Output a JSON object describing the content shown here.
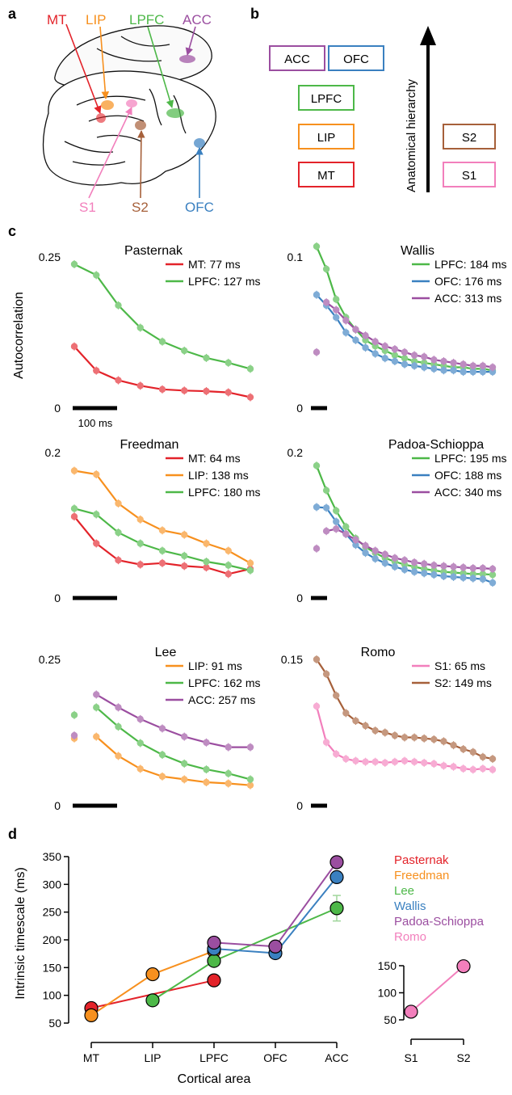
{
  "colors": {
    "MT": "#e3232a",
    "LIP": "#f7901e",
    "LPFC": "#4db848",
    "OFC": "#3a80c0",
    "ACC": "#9b4ea0",
    "S1": "#f27fbc",
    "S2": "#a6603a"
  },
  "panel_a": {
    "letter": "a",
    "labels": {
      "MT": "MT",
      "LIP": "LIP",
      "LPFC": "LPFC",
      "ACC": "ACC",
      "S1": "S1",
      "S2": "S2",
      "OFC": "OFC"
    }
  },
  "panel_b": {
    "letter": "b",
    "axis_label": "Anatomical hierarchy",
    "boxes": {
      "ACC": "ACC",
      "OFC": "OFC",
      "LPFC": "LPFC",
      "LIP": "LIP",
      "MT": "MT",
      "S2": "S2",
      "S1": "S1"
    }
  },
  "panel_c": {
    "letter": "c",
    "ylabel": "Autocorrelation",
    "scalebar_label": "100 ms"
  },
  "panel_d": {
    "letter": "d",
    "ylabel": "Intrinsic timescale (ms)",
    "xlabel": "Cortical area",
    "legend": [
      "Pasternak",
      "Freedman",
      "Lee",
      "Wallis",
      "Padoa-Schioppa",
      "Romo"
    ]
  },
  "chart_data": [
    {
      "id": "pasternak",
      "type": "line",
      "title": "Pasternak",
      "ylim": [
        0,
        0.25
      ],
      "yticks": [
        "0.25",
        "0"
      ],
      "legend": [
        "MT: 77 ms",
        "LPFC: 127 ms"
      ],
      "series": [
        {
          "name": "MT: 77 ms",
          "area": "MT",
          "x": [
            1,
            2,
            3,
            4,
            5,
            6,
            7,
            8,
            9
          ],
          "values": [
            0.102,
            0.062,
            0.046,
            0.037,
            0.031,
            0.029,
            0.028,
            0.026,
            0.018
          ]
        },
        {
          "name": "LPFC: 127 ms",
          "area": "LPFC",
          "x": [
            1,
            2,
            3,
            4,
            5,
            6,
            7,
            8,
            9
          ],
          "values": [
            0.238,
            0.22,
            0.17,
            0.133,
            0.11,
            0.095,
            0.083,
            0.075,
            0.065
          ]
        }
      ]
    },
    {
      "id": "wallis",
      "type": "line",
      "title": "Wallis",
      "ylim": [
        0,
        0.1
      ],
      "yticks": [
        "0.1",
        "0"
      ],
      "legend": [
        "LPFC: 184 ms",
        "OFC: 176 ms",
        "ACC: 313 ms"
      ],
      "series": [
        {
          "name": "LPFC: 184 ms",
          "area": "LPFC",
          "x": [
            1,
            2,
            3,
            4,
            5,
            6,
            7,
            8,
            9,
            10,
            11,
            12,
            13,
            14,
            15,
            16,
            17,
            18,
            19
          ],
          "values": [
            0.107,
            0.092,
            0.072,
            0.06,
            0.052,
            0.045,
            0.041,
            0.038,
            0.035,
            0.033,
            0.031,
            0.03,
            0.029,
            0.028,
            0.027,
            0.027,
            0.026,
            0.026,
            0.025
          ]
        },
        {
          "name": "OFC: 176 ms",
          "area": "OFC",
          "x": [
            1,
            2,
            3,
            4,
            5,
            6,
            7,
            8,
            9,
            10,
            11,
            12,
            13,
            14,
            15,
            16,
            17,
            18,
            19
          ],
          "values": [
            0.075,
            0.068,
            0.06,
            0.05,
            0.045,
            0.04,
            0.036,
            0.033,
            0.031,
            0.029,
            0.028,
            0.027,
            0.026,
            0.025,
            0.025,
            0.024,
            0.024,
            0.024,
            0.024
          ]
        },
        {
          "name": "ACC: 313 ms",
          "area": "ACC",
          "x": [
            1,
            2,
            3,
            4,
            5,
            6,
            7,
            8,
            9,
            10,
            11,
            12,
            13,
            14,
            15,
            16,
            17,
            18,
            19
          ],
          "values": [
            0.037,
            0.07,
            0.065,
            0.058,
            0.052,
            0.048,
            0.044,
            0.041,
            0.039,
            0.037,
            0.035,
            0.034,
            0.032,
            0.031,
            0.03,
            0.029,
            0.028,
            0.028,
            0.027
          ]
        }
      ]
    },
    {
      "id": "freedman",
      "type": "line",
      "title": "Freedman",
      "ylim": [
        0,
        0.2
      ],
      "yticks": [
        "0.2",
        "0"
      ],
      "legend": [
        "MT: 64 ms",
        "LIP: 138 ms",
        "LPFC: 180 ms"
      ],
      "series": [
        {
          "name": "MT: 64 ms",
          "area": "MT",
          "x": [
            1,
            2,
            3,
            4,
            5,
            6,
            7,
            8,
            9
          ],
          "values": [
            0.112,
            0.075,
            0.052,
            0.046,
            0.048,
            0.044,
            0.042,
            0.033,
            0.04
          ]
        },
        {
          "name": "LIP: 138 ms",
          "area": "LIP",
          "x": [
            1,
            2,
            3,
            4,
            5,
            6,
            7,
            8,
            9
          ],
          "values": [
            0.175,
            0.17,
            0.13,
            0.108,
            0.093,
            0.087,
            0.075,
            0.065,
            0.048
          ]
        },
        {
          "name": "LPFC: 180 ms",
          "area": "LPFC",
          "x": [
            1,
            2,
            3,
            4,
            5,
            6,
            7,
            8,
            9
          ],
          "values": [
            0.123,
            0.115,
            0.09,
            0.075,
            0.065,
            0.058,
            0.05,
            0.045,
            0.038
          ]
        }
      ]
    },
    {
      "id": "padoa",
      "type": "line",
      "title": "Padoa-Schioppa",
      "ylim": [
        0,
        0.2
      ],
      "yticks": [
        "0.2",
        "0"
      ],
      "legend": [
        "LPFC: 195 ms",
        "OFC: 188 ms",
        "ACC: 340 ms"
      ],
      "series": [
        {
          "name": "LPFC: 195 ms",
          "area": "LPFC",
          "x": [
            1,
            2,
            3,
            4,
            5,
            6,
            7,
            8,
            9,
            10,
            11,
            12,
            13,
            14,
            15,
            16,
            17,
            18,
            19
          ],
          "values": [
            0.182,
            0.148,
            0.12,
            0.098,
            0.082,
            0.07,
            0.062,
            0.055,
            0.05,
            0.046,
            0.043,
            0.04,
            0.038,
            0.036,
            0.035,
            0.034,
            0.033,
            0.033,
            0.032
          ]
        },
        {
          "name": "OFC: 188 ms",
          "area": "OFC",
          "x": [
            1,
            2,
            3,
            4,
            5,
            6,
            7,
            8,
            9,
            10,
            11,
            12,
            13,
            14,
            15,
            16,
            17,
            18,
            19
          ],
          "values": [
            0.125,
            0.124,
            0.105,
            0.088,
            0.073,
            0.062,
            0.054,
            0.048,
            0.043,
            0.039,
            0.036,
            0.034,
            0.032,
            0.03,
            0.029,
            0.028,
            0.027,
            0.026,
            0.021
          ]
        },
        {
          "name": "ACC: 340 ms",
          "area": "ACC",
          "x": [
            1,
            2,
            3,
            4,
            5,
            6,
            7,
            8,
            9,
            10,
            11,
            12,
            13,
            14,
            15,
            16,
            17,
            18,
            19
          ],
          "values": [
            0.068,
            0.092,
            0.095,
            0.088,
            0.08,
            0.072,
            0.065,
            0.06,
            0.055,
            0.052,
            0.049,
            0.047,
            0.045,
            0.044,
            0.043,
            0.042,
            0.041,
            0.041,
            0.04
          ]
        }
      ]
    },
    {
      "id": "lee",
      "type": "line",
      "title": "Lee",
      "ylim": [
        0,
        0.25
      ],
      "yticks": [
        "0.25",
        "0"
      ],
      "legend": [
        "LIP: 91 ms",
        "LPFC: 162 ms",
        "ACC: 257 ms"
      ],
      "series": [
        {
          "name": "LIP: 91 ms",
          "area": "LIP",
          "x": [
            1,
            2,
            3,
            4,
            5,
            6,
            7,
            8,
            9
          ],
          "values": [
            0.115,
            0.118,
            0.085,
            0.063,
            0.05,
            0.045,
            0.04,
            0.038,
            0.035
          ]
        },
        {
          "name": "LPFC: 162 ms",
          "area": "LPFC",
          "x": [
            1,
            2,
            3,
            4,
            5,
            6,
            7,
            8,
            9
          ],
          "values": [
            0.155,
            0.168,
            0.135,
            0.107,
            0.087,
            0.072,
            0.062,
            0.055,
            0.045
          ]
        },
        {
          "name": "ACC: 257 ms",
          "area": "ACC",
          "x": [
            1,
            2,
            3,
            4,
            5,
            6,
            7,
            8,
            9
          ],
          "values": [
            0.12,
            0.19,
            0.168,
            0.148,
            0.132,
            0.118,
            0.108,
            0.1,
            0.1
          ]
        }
      ]
    },
    {
      "id": "romo",
      "type": "line",
      "title": "Romo",
      "ylim": [
        0,
        0.15
      ],
      "yticks": [
        "0.15",
        "0"
      ],
      "legend": [
        "S1: 65 ms",
        "S2: 149 ms"
      ],
      "series": [
        {
          "name": "S1: 65 ms",
          "area": "S1",
          "x": [
            1,
            2,
            3,
            4,
            5,
            6,
            7,
            8,
            9,
            10,
            11,
            12,
            13,
            14,
            15,
            16,
            17,
            18,
            19
          ],
          "values": [
            0.102,
            0.065,
            0.053,
            0.048,
            0.046,
            0.045,
            0.045,
            0.044,
            0.045,
            0.046,
            0.045,
            0.044,
            0.043,
            0.041,
            0.04,
            0.038,
            0.037,
            0.038,
            0.037
          ]
        },
        {
          "name": "S2: 149 ms",
          "area": "S2",
          "x": [
            1,
            2,
            3,
            4,
            5,
            6,
            7,
            8,
            9,
            10,
            11,
            12,
            13,
            14,
            15,
            16,
            17,
            18,
            19
          ],
          "values": [
            0.15,
            0.135,
            0.113,
            0.095,
            0.087,
            0.082,
            0.077,
            0.075,
            0.072,
            0.07,
            0.07,
            0.069,
            0.068,
            0.066,
            0.062,
            0.058,
            0.055,
            0.05,
            0.048
          ]
        }
      ]
    },
    {
      "id": "timescales",
      "type": "line",
      "categories": [
        "MT",
        "LIP",
        "LPFC",
        "OFC",
        "ACC"
      ],
      "yticks": [
        "350",
        "300",
        "250",
        "200",
        "150",
        "100",
        "50"
      ],
      "ylim": [
        50,
        350
      ],
      "series": [
        {
          "name": "Pasternak",
          "color": "#e3232a",
          "points": [
            [
              "MT",
              77
            ],
            [
              "LPFC",
              127
            ]
          ]
        },
        {
          "name": "Freedman",
          "color": "#f7901e",
          "points": [
            [
              "MT",
              64
            ],
            [
              "LIP",
              138
            ],
            [
              "LPFC",
              180
            ]
          ]
        },
        {
          "name": "Lee",
          "color": "#4db848",
          "points": [
            [
              "LIP",
              91
            ],
            [
              "LPFC",
              162
            ],
            [
              "ACC",
              257
            ]
          ]
        },
        {
          "name": "Wallis",
          "color": "#3a80c0",
          "points": [
            [
              "LPFC",
              184
            ],
            [
              "OFC",
              176
            ],
            [
              "ACC",
              313
            ]
          ]
        },
        {
          "name": "Padoa-Schioppa",
          "color": "#9b4ea0",
          "points": [
            [
              "LPFC",
              195
            ],
            [
              "OFC",
              188
            ],
            [
              "ACC",
              340
            ]
          ]
        }
      ]
    },
    {
      "id": "romo_inset",
      "type": "line",
      "categories": [
        "S1",
        "S2"
      ],
      "yticks": [
        "150",
        "100",
        "50"
      ],
      "ylim": [
        50,
        150
      ],
      "series": [
        {
          "name": "Romo",
          "color": "#f27fbc",
          "points": [
            [
              "S1",
              65
            ],
            [
              "S2",
              149
            ]
          ]
        }
      ]
    }
  ]
}
